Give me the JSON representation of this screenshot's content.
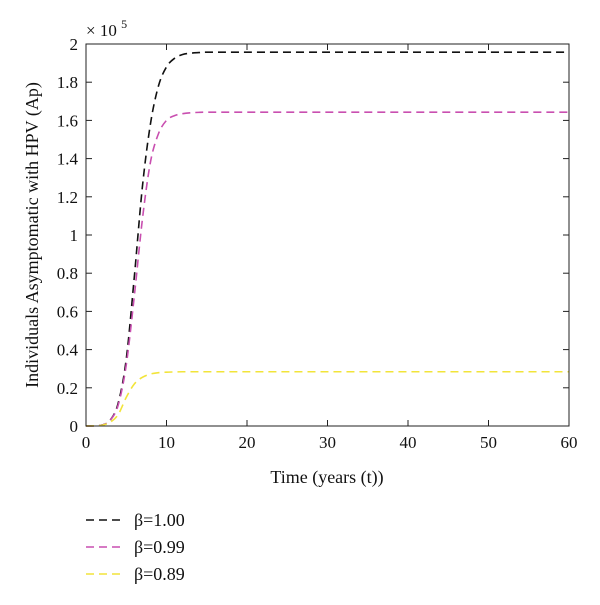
{
  "chart_data": {
    "type": "line",
    "title": "",
    "xlabel": "Time (years (t))",
    "ylabel": "Individuals Asymptomatic with HPV (Ap)",
    "y_multiplier_label": "× 10",
    "y_multiplier_exponent": "5",
    "xlim": [
      0,
      60
    ],
    "ylim": [
      0,
      2
    ],
    "xticks": [
      0,
      10,
      20,
      30,
      40,
      50,
      60
    ],
    "yticks": [
      0,
      0.2,
      0.4,
      0.6,
      0.8,
      1,
      1.2,
      1.4,
      1.6,
      1.8,
      2
    ],
    "xtick_labels": [
      "0",
      "10",
      "20",
      "30",
      "40",
      "50",
      "60"
    ],
    "ytick_labels": [
      "0",
      "0.2",
      "0.4",
      "0.6",
      "0.8",
      "1",
      "1.2",
      "1.4",
      "1.6",
      "1.8",
      "2"
    ],
    "grid": false,
    "legend_position": "below-left",
    "line_style": "dashed",
    "x": [
      0,
      1,
      2,
      3,
      4,
      5,
      6,
      7,
      8,
      9,
      10,
      11,
      12,
      13,
      14,
      15,
      20,
      30,
      40,
      50,
      60
    ],
    "series": [
      {
        "name": "β=1.00",
        "color": "#111111",
        "values": [
          0,
          0.001,
          0.005,
          0.03,
          0.12,
          0.35,
          0.78,
          1.25,
          1.58,
          1.78,
          1.88,
          1.925,
          1.945,
          1.952,
          1.955,
          1.957,
          1.957,
          1.957,
          1.957,
          1.957,
          1.957
        ]
      },
      {
        "name": "β=0.99",
        "color": "#c94fb0",
        "values": [
          0,
          0.001,
          0.005,
          0.03,
          0.11,
          0.32,
          0.68,
          1.08,
          1.38,
          1.53,
          1.6,
          1.625,
          1.635,
          1.64,
          1.642,
          1.643,
          1.643,
          1.643,
          1.643,
          1.643,
          1.643
        ]
      },
      {
        "name": "β=0.89",
        "color": "#f2e43a",
        "values": [
          0,
          0.001,
          0.004,
          0.02,
          0.06,
          0.15,
          0.22,
          0.255,
          0.272,
          0.279,
          0.282,
          0.283,
          0.284,
          0.284,
          0.284,
          0.284,
          0.284,
          0.284,
          0.284,
          0.284,
          0.284
        ]
      }
    ]
  }
}
